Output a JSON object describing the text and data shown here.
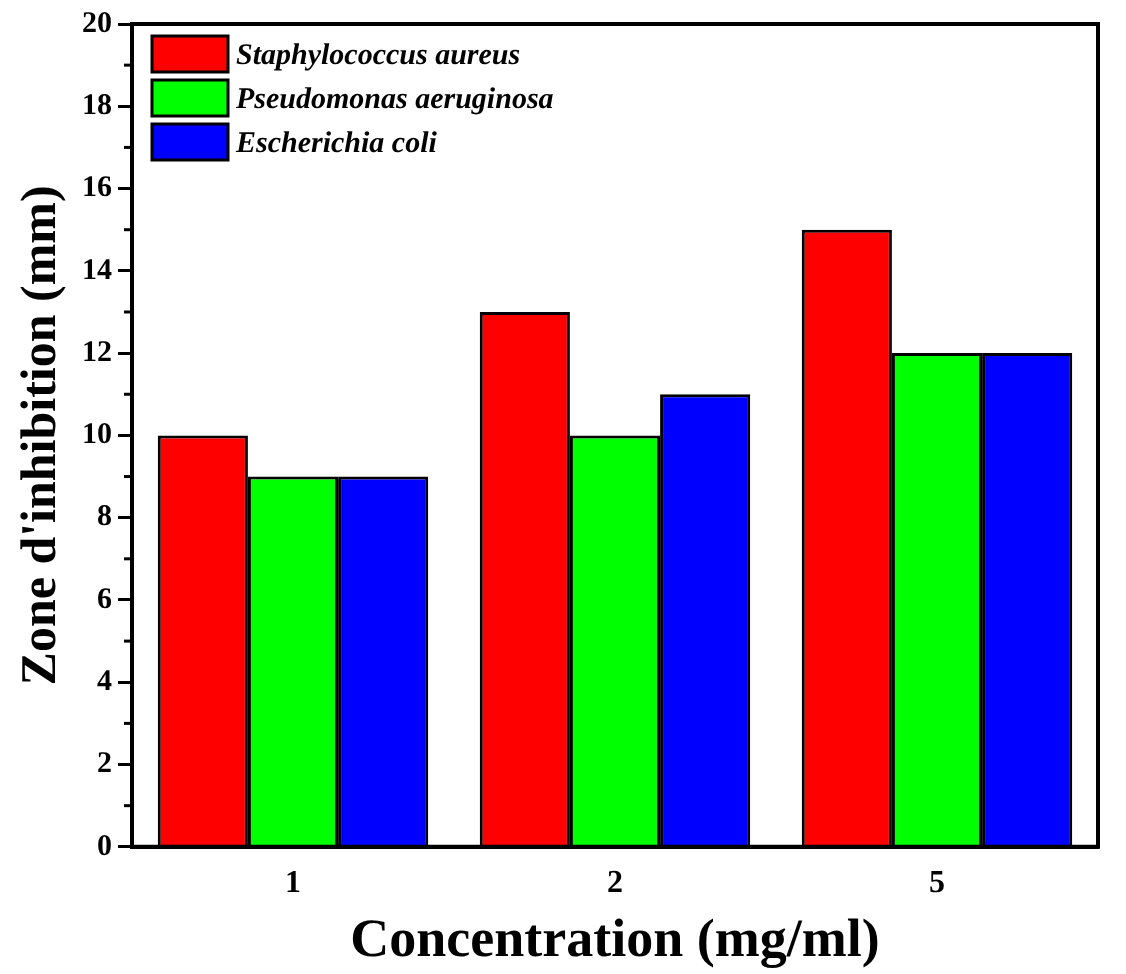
{
  "chart_data": {
    "type": "bar",
    "xlabel": "Concentration (mg/ml)",
    "ylabel": "Zone d'inhibition (mm)",
    "categories": [
      "1",
      "2",
      "5"
    ],
    "series": [
      {
        "name": "Staphylococcus aureus",
        "color": "#ff0000",
        "values": [
          10,
          13,
          15
        ]
      },
      {
        "name": "Pseudomonas aeruginosa",
        "color": "#00ff00",
        "values": [
          9,
          10,
          12
        ]
      },
      {
        "name": "Escherichia coli",
        "color": "#0000ff",
        "values": [
          9,
          11,
          12
        ]
      }
    ],
    "ylim": [
      0,
      20
    ],
    "yticks": [
      0,
      2,
      4,
      6,
      8,
      10,
      12,
      14,
      16,
      18,
      20
    ],
    "grid": false,
    "legend": "top left"
  }
}
